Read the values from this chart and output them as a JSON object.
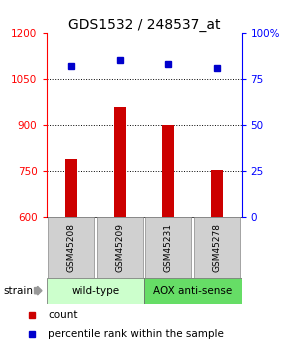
{
  "title": "GDS1532 / 248537_at",
  "samples": [
    "GSM45208",
    "GSM45209",
    "GSM45231",
    "GSM45278"
  ],
  "counts": [
    790,
    960,
    900,
    755
  ],
  "percentiles": [
    82,
    85,
    83,
    81
  ],
  "ylim_left": [
    600,
    1200
  ],
  "ylim_right": [
    0,
    100
  ],
  "yticks_left": [
    600,
    750,
    900,
    1050,
    1200
  ],
  "yticks_right": [
    0,
    25,
    50,
    75,
    100
  ],
  "ytick_labels_right": [
    "0",
    "25",
    "50",
    "75",
    "100%"
  ],
  "bar_color": "#cc0000",
  "dot_color": "#0000cc",
  "bar_bottom": 600,
  "group_colors": {
    "wild-type": "#ccffcc",
    "AOX anti-sense": "#66dd66"
  },
  "strain_label": "strain",
  "legend_count_label": "count",
  "legend_pct_label": "percentile rank within the sample",
  "title_fontsize": 10,
  "tick_fontsize": 7.5,
  "dotgrid_values": [
    750,
    900,
    1050
  ],
  "x_positions": [
    1,
    2,
    3,
    4
  ],
  "bar_width": 0.25,
  "group_spans": [
    [
      "wild-type",
      0.5,
      2.5
    ],
    [
      "AOX anti-sense",
      2.5,
      4.5
    ]
  ]
}
